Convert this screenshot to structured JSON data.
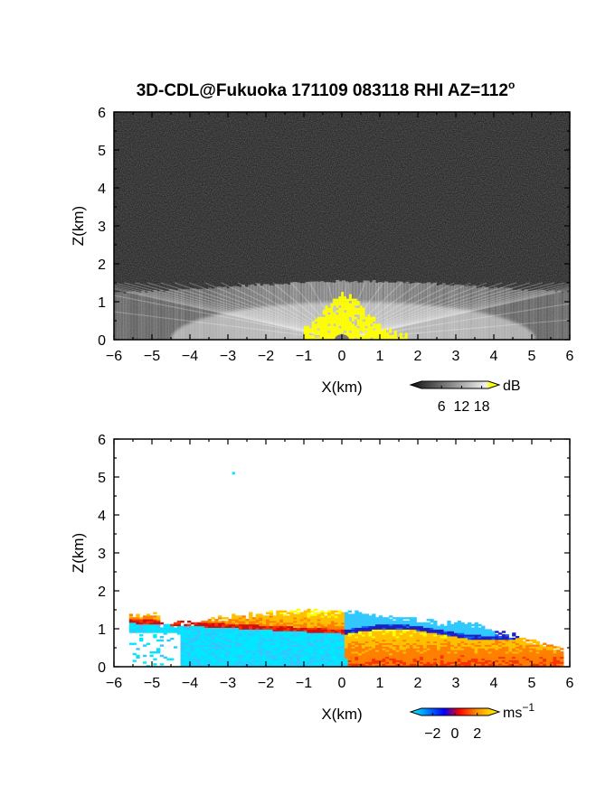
{
  "figure": {
    "title_main": "3D-CDL@Fukuoka 171109 083118 RHI AZ=112",
    "title_deg": "o"
  },
  "chart_data": [
    {
      "type": "heatmap",
      "quantity": "backscatter intensity",
      "xlabel": "X(km)",
      "ylabel": "Z(km)",
      "xlim": [
        -6,
        6
      ],
      "ylim": [
        0,
        6
      ],
      "xticks": [
        "−6",
        "−5",
        "−4",
        "−3",
        "−2",
        "−1",
        "0",
        "1",
        "2",
        "3",
        "4",
        "5",
        "6"
      ],
      "yticks": [
        "0",
        "1",
        "2",
        "3",
        "4",
        "5",
        "6"
      ],
      "background": "dark gray noise",
      "colorbar": {
        "unit": "dB",
        "ticks": [
          "6",
          "12",
          "18"
        ],
        "tick_values": [
          6,
          12,
          18
        ],
        "range": [
          0,
          20
        ],
        "colors": [
          "#101010",
          "#ffffff",
          "#ffff00"
        ]
      },
      "features": [
        {
          "name": "boundary layer echo",
          "x_range": [
            -6,
            6
          ],
          "z_top": 1.5
        },
        {
          "name": "strong near-radar echo",
          "x_range": [
            -1,
            1.7
          ],
          "z_top": 1.1,
          "value_db": 18
        }
      ]
    },
    {
      "type": "heatmap",
      "quantity": "Doppler velocity",
      "xlabel": "X(km)",
      "ylabel": "Z(km)",
      "xlim": [
        -6,
        6
      ],
      "ylim": [
        0,
        6
      ],
      "xticks": [
        "−6",
        "−5",
        "−4",
        "−3",
        "−2",
        "−1",
        "0",
        "1",
        "2",
        "3",
        "4",
        "5",
        "6"
      ],
      "yticks": [
        "0",
        "1",
        "2",
        "3",
        "4",
        "5",
        "6"
      ],
      "colorbar": {
        "unit_main": "ms",
        "unit_exp": "−1",
        "ticks": [
          "−2",
          "0",
          "2"
        ],
        "tick_values": [
          -2,
          0,
          2
        ],
        "range": [
          -3,
          3
        ],
        "colors": [
          "#00ffff",
          "#0000ff",
          "#ff0000",
          "#ffff00"
        ]
      },
      "features": [
        {
          "name": "approaching flow",
          "x_range": [
            -4.5,
            0
          ],
          "z_range": [
            0,
            0.9
          ],
          "value_ms": -2.5
        },
        {
          "name": "receding flow",
          "x_range": [
            0,
            5.5
          ],
          "z_range": [
            0,
            1.1
          ],
          "value_ms": 2
        },
        {
          "name": "upper shear layer",
          "x_range": [
            -5.5,
            0
          ],
          "z_range": [
            0.9,
            1.5
          ],
          "value_ms": 2
        },
        {
          "name": "isolated echo",
          "x": -2.85,
          "z": 5.1,
          "value_ms": -3
        }
      ]
    }
  ]
}
